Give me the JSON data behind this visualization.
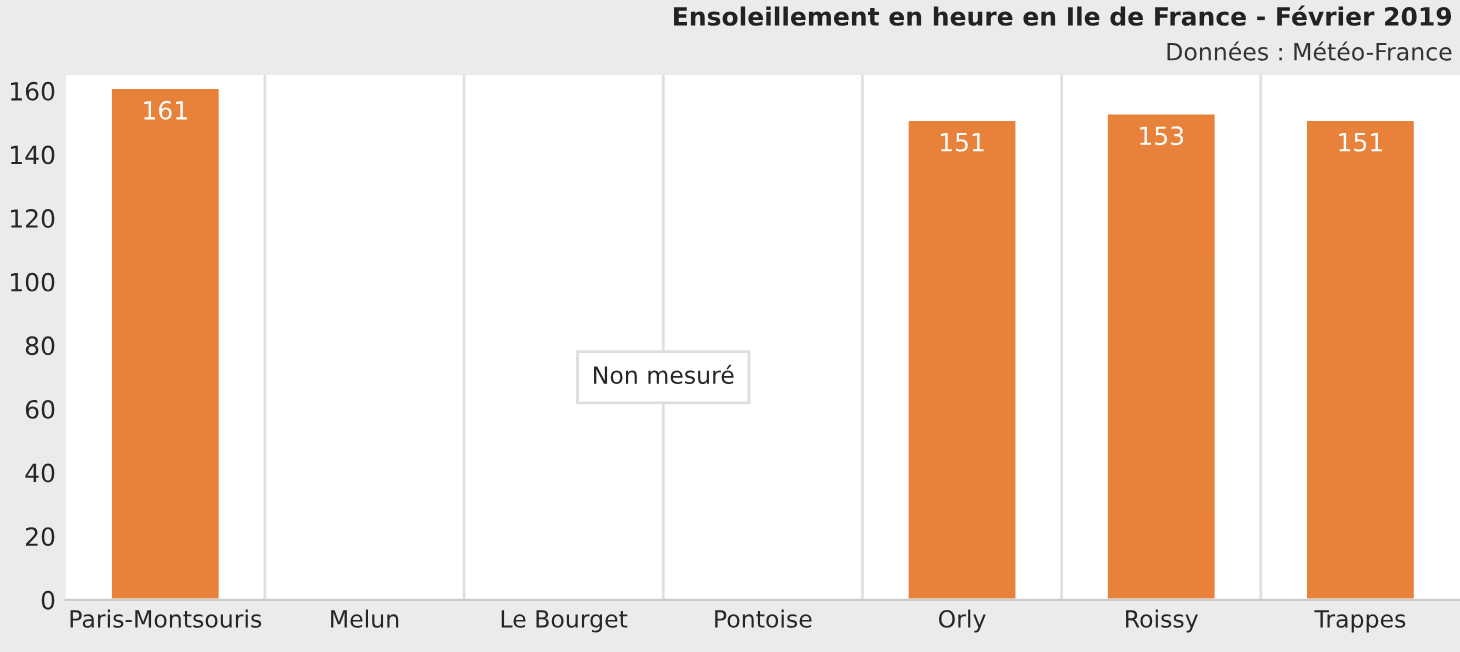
{
  "chart_data": {
    "type": "bar",
    "title": "Ensoleillement en heure en Ile de France - Février 2019",
    "subtitle": "Données : Météo-France",
    "categories": [
      "Paris-Montsouris",
      "Melun",
      "Le Bourget",
      "Pontoise",
      "Orly",
      "Roissy",
      "Trappes"
    ],
    "values": [
      161,
      null,
      null,
      null,
      151,
      153,
      151
    ],
    "color": "#e8823a",
    "ylim": [
      0,
      165
    ],
    "yticks": [
      0,
      20,
      40,
      60,
      80,
      100,
      120,
      140,
      160
    ],
    "grid": "x",
    "data_labels": true,
    "annotations": [
      "Non mesuré"
    ]
  }
}
